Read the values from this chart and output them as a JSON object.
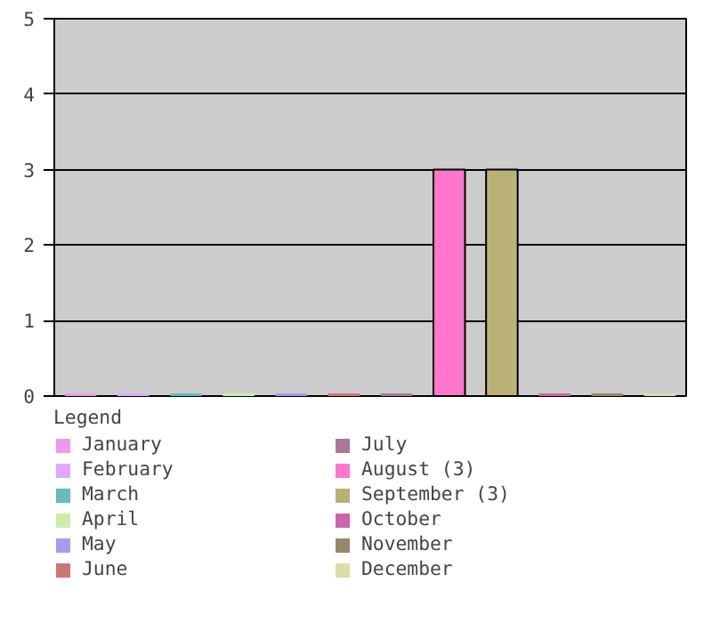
{
  "chart_data": {
    "type": "bar",
    "categories": [
      null
    ],
    "series": [
      {
        "name": "January",
        "color": "#ee99ee",
        "values": [
          0
        ]
      },
      {
        "name": "February",
        "color": "#ddaaff",
        "values": [
          0
        ]
      },
      {
        "name": "March",
        "color": "#66bbbb",
        "values": [
          0
        ]
      },
      {
        "name": "April",
        "color": "#cceeaa",
        "values": [
          0
        ]
      },
      {
        "name": "May",
        "color": "#aa99ee",
        "values": [
          0
        ]
      },
      {
        "name": "June",
        "color": "#cc7777",
        "values": [
          0
        ]
      },
      {
        "name": "July",
        "color": "#aa7799",
        "values": [
          0
        ]
      },
      {
        "name": "August (3)",
        "color": "#ff77cc",
        "values": [
          3
        ]
      },
      {
        "name": "September (3)",
        "color": "#bbb177",
        "values": [
          3
        ]
      },
      {
        "name": "October",
        "color": "#cc66aa",
        "values": [
          0
        ]
      },
      {
        "name": "November",
        "color": "#998866",
        "values": [
          0
        ]
      },
      {
        "name": "December",
        "color": "#dddda8",
        "values": [
          0
        ]
      }
    ],
    "ylim": [
      0,
      5
    ],
    "yticks": [
      0,
      1,
      2,
      3,
      4,
      5
    ],
    "grid": "y",
    "legend": "bottom",
    "legend_title": "Legend"
  }
}
